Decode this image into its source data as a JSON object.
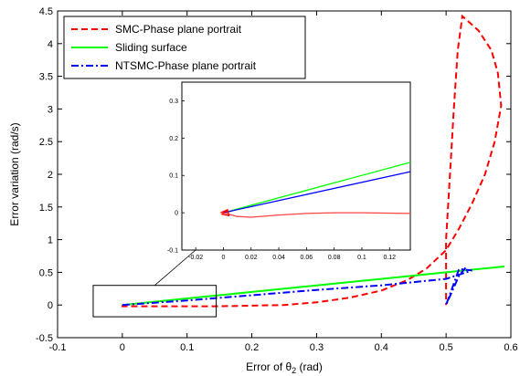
{
  "chart_data": {
    "type": "line",
    "xlabel_main": "Error of θ",
    "xlabel_sub": "2",
    "xlabel_unit": " (rad)",
    "ylabel": "Error variation (rad/s)",
    "xlim": [
      -0.1,
      0.6
    ],
    "ylim": [
      -0.5,
      4.5
    ],
    "xticks": [
      "-0.1",
      "0",
      "0.1",
      "0.2",
      "0.3",
      "0.4",
      "0.5",
      "0.6"
    ],
    "yticks": [
      "-0.5",
      "0",
      "0.5",
      "1",
      "1.5",
      "2",
      "2.5",
      "3",
      "3.5",
      "4",
      "4.5"
    ],
    "legend_position": "top-left",
    "series": [
      {
        "name": "SMC-Phase plane portrait",
        "color": "#ff0000",
        "style": "dashed",
        "points": [
          [
            0.0,
            0.0
          ],
          [
            0.0,
            -0.02
          ],
          [
            0.02,
            -0.02
          ],
          [
            0.05,
            -0.02
          ],
          [
            0.1,
            -0.02
          ],
          [
            0.15,
            -0.02
          ],
          [
            0.2,
            -0.01
          ],
          [
            0.25,
            0.0
          ],
          [
            0.3,
            0.04
          ],
          [
            0.35,
            0.11
          ],
          [
            0.4,
            0.22
          ],
          [
            0.44,
            0.38
          ],
          [
            0.47,
            0.56
          ],
          [
            0.5,
            0.84
          ],
          [
            0.52,
            1.17
          ],
          [
            0.54,
            1.55
          ],
          [
            0.56,
            2.0
          ],
          [
            0.575,
            2.5
          ],
          [
            0.585,
            3.05
          ],
          [
            0.58,
            3.55
          ],
          [
            0.57,
            3.9
          ],
          [
            0.55,
            4.2
          ],
          [
            0.525,
            4.42
          ],
          [
            0.518,
            3.9
          ],
          [
            0.512,
            3.0
          ],
          [
            0.506,
            2.0
          ],
          [
            0.5,
            1.0
          ],
          [
            0.5,
            0.3
          ],
          [
            0.5,
            0.0
          ]
        ]
      },
      {
        "name": "Sliding surface",
        "color": "#00ff00",
        "style": "solid",
        "points": [
          [
            0.0,
            0.0
          ],
          [
            0.1,
            0.1
          ],
          [
            0.2,
            0.2
          ],
          [
            0.3,
            0.3
          ],
          [
            0.4,
            0.4
          ],
          [
            0.5,
            0.5
          ],
          [
            0.59,
            0.59
          ]
        ]
      },
      {
        "name": "NTSMC-Phase plane portrait",
        "color": "#0000ff",
        "style": "dashdot",
        "points": [
          [
            0.0,
            0.0
          ],
          [
            0.1,
            0.07
          ],
          [
            0.2,
            0.15
          ],
          [
            0.3,
            0.23
          ],
          [
            0.4,
            0.3
          ],
          [
            0.45,
            0.35
          ],
          [
            0.5,
            0.4
          ],
          [
            0.54,
            0.53
          ],
          [
            0.52,
            0.55
          ],
          [
            0.5,
            0.0
          ],
          [
            0.52,
            0.45
          ],
          [
            0.53,
            0.57
          ]
        ]
      }
    ],
    "zoom_box": [
      -0.045,
      0.145,
      -0.18,
      0.3
    ],
    "inset": {
      "xlim": [
        -0.03,
        0.135
      ],
      "ylim": [
        -0.1,
        0.35
      ],
      "xticks": [
        "-0.02",
        "0",
        "0.02",
        "0.04",
        "0.06",
        "0.08",
        "0.1",
        "0.12"
      ],
      "yticks": [
        "-0.1",
        "0",
        "0.1",
        "0.2",
        "0.3"
      ],
      "series": [
        {
          "name": "Sliding surface",
          "color": "#00ff00",
          "style": "solid",
          "points": [
            [
              0.0,
              0.0
            ],
            [
              0.135,
              0.135
            ]
          ]
        },
        {
          "name": "NTSMC-Phase plane portrait",
          "color": "#0000ff",
          "style": "solid",
          "points": [
            [
              0.0,
              0.0
            ],
            [
              0.135,
              0.11
            ]
          ]
        },
        {
          "name": "SMC-Phase plane portrait",
          "color": "#ff4444",
          "style": "solid",
          "points": [
            [
              0.0,
              0.0
            ],
            [
              0.005,
              -0.005
            ],
            [
              0.01,
              -0.01
            ],
            [
              0.02,
              -0.012
            ],
            [
              0.04,
              -0.006
            ],
            [
              0.06,
              -0.002
            ],
            [
              0.08,
              0.0
            ],
            [
              0.1,
              0.0
            ],
            [
              0.135,
              -0.002
            ]
          ]
        },
        {
          "name": "SMC-Phase plane portrait cluster",
          "color": "#ff0000",
          "style": "solid",
          "points": [
            [
              -0.002,
              0.0
            ],
            [
              0.003,
              0.008
            ],
            [
              0.004,
              -0.008
            ],
            [
              -0.001,
              -0.004
            ],
            [
              0.002,
              0.005
            ],
            [
              0.004,
              0.0
            ]
          ]
        }
      ]
    }
  }
}
